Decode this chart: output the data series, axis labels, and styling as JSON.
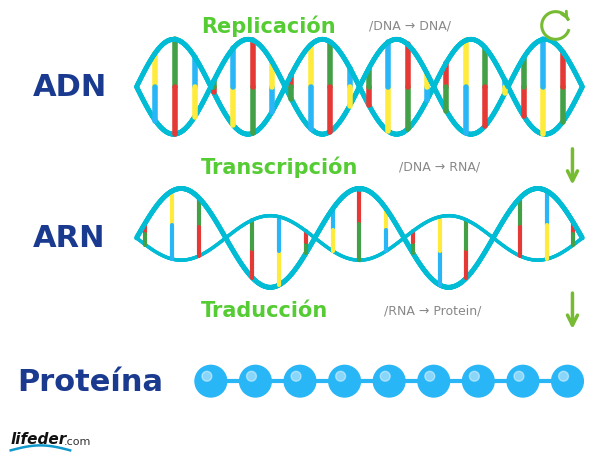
{
  "bg_color": "#ffffff",
  "title_color": "#1a3a8f",
  "process_color": "#55cc33",
  "arrow_color": "#77bb33",
  "dna_helix_color": "#00bcd4",
  "bar_colors": [
    "#e53935",
    "#ffeb3b",
    "#43a047",
    "#29b6f6"
  ],
  "protein_color": "#29b6f6",
  "labels": {
    "ADN": "ADN",
    "ARN": "ARN",
    "Proteina": "Proteína"
  },
  "processes": [
    {
      "name": "Replicación",
      "formula": "/DNA → DNA/"
    },
    {
      "name": "Transcripción",
      "formula": "/DNA → RNA/"
    },
    {
      "name": "Traducción",
      "formula": "/RNA → Protein/"
    }
  ],
  "lifeder_text": "lifeder",
  "lifeder_com": ".com"
}
